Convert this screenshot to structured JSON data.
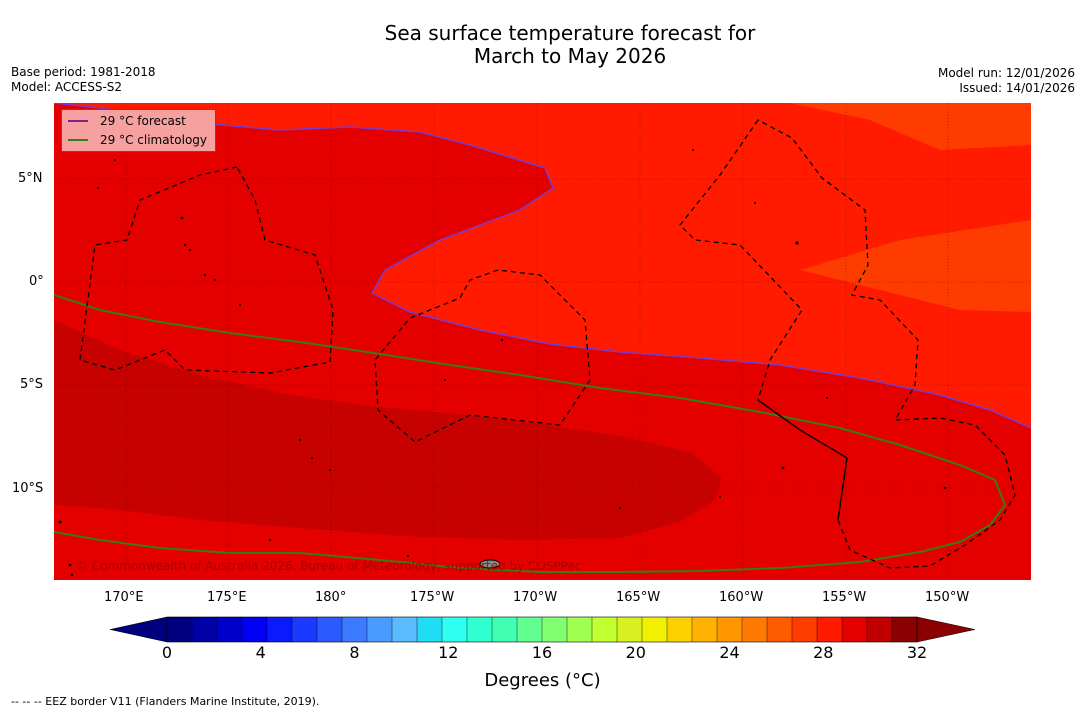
{
  "title": {
    "line1": "Sea surface temperature forecast for",
    "line2": "March to May 2026"
  },
  "meta_left": {
    "base_period": "Base period: 1981-2018",
    "model": "Model: ACCESS-S2"
  },
  "meta_right": {
    "model_run": "Model run: 12/01/2026",
    "issued": "Issued: 14/01/2026"
  },
  "legend": [
    {
      "label": "29 °C  forecast",
      "color": "#8b1a8b"
    },
    {
      "label": "29 °C  climatology",
      "color": "#2e7d1e"
    }
  ],
  "lat_labels": [
    "5°N",
    "0°",
    "5°S",
    "10°S"
  ],
  "lon_labels": [
    "170°E",
    "175°E",
    "180°",
    "175°W",
    "170°W",
    "165°W",
    "160°W",
    "155°W",
    "150°W"
  ],
  "colorbar": {
    "ticks": [
      "0",
      "4",
      "8",
      "12",
      "16",
      "20",
      "24",
      "28",
      "32"
    ],
    "title": "Degrees (°C)",
    "colors": [
      "#00007f",
      "#0000a6",
      "#0000cd",
      "#0000f4",
      "#0a1aff",
      "#1c3aff",
      "#2b5bff",
      "#3a7bff",
      "#4a9bff",
      "#5abbff",
      "#20ddf5",
      "#2ffff0",
      "#30ffd0",
      "#40ffb0",
      "#60ff90",
      "#80ff70",
      "#a0ff50",
      "#c0ff30",
      "#d8f020",
      "#f0f000",
      "#ffd000",
      "#ffb300",
      "#ff9600",
      "#ff7a00",
      "#ff5c00",
      "#ff3c00",
      "#ff1a00",
      "#e50000",
      "#c00000",
      "#8b0000"
    ],
    "min_color": "#00007f",
    "max_color": "#8b0000"
  },
  "copyright": "© Commonwealth of Australia 2026, Bureau of Meteorology, supported by COSPPac",
  "footnote": "--  --  -- EEZ border V11 (Flanders Marine Institute, 2019).",
  "map_colors": {
    "warm_28": "#ff1a00",
    "warm_29": "#e50000",
    "warm_30": "#c70000",
    "warm_27": "#ff3c00"
  }
}
